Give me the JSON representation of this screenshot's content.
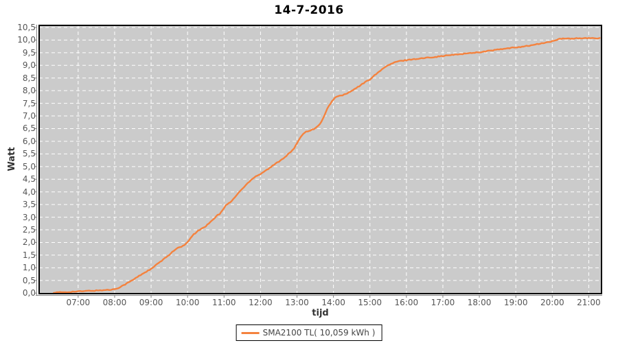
{
  "chart_data": {
    "type": "line",
    "title": "14-7-2016",
    "xlabel": "tijd",
    "ylabel": "Watt",
    "ylim": [
      0,
      10.5
    ],
    "y_tick_step": 0.5,
    "grid": {
      "visible": true,
      "color": "#FFFFFF",
      "style": "dashed"
    },
    "plot_background": "#CBCBCB",
    "plot_border_color": "#000000",
    "tick_text_color": "#555555",
    "x_ticks": [
      {
        "t": 7,
        "label": "07:00"
      },
      {
        "t": 8,
        "label": "08:00"
      },
      {
        "t": 9,
        "label": "09:00"
      },
      {
        "t": 10,
        "label": "10:00"
      },
      {
        "t": 11,
        "label": "11:00"
      },
      {
        "t": 12,
        "label": "12:00"
      },
      {
        "t": 13,
        "label": "13:00"
      },
      {
        "t": 14,
        "label": "14:00"
      },
      {
        "t": 15,
        "label": "15:00"
      },
      {
        "t": 16,
        "label": "16:00"
      },
      {
        "t": 17,
        "label": "17:00"
      },
      {
        "t": 18,
        "label": "18:00"
      },
      {
        "t": 19,
        "label": "19:00"
      },
      {
        "t": 20,
        "label": "20:00"
      },
      {
        "t": 21,
        "label": "21:00"
      }
    ],
    "y_ticks": [
      {
        "v": 0.0,
        "label": "0,0"
      },
      {
        "v": 0.5,
        "label": "0,5"
      },
      {
        "v": 1.0,
        "label": "1,0"
      },
      {
        "v": 1.5,
        "label": "1,5"
      },
      {
        "v": 2.0,
        "label": "2,0"
      },
      {
        "v": 2.5,
        "label": "2,5"
      },
      {
        "v": 3.0,
        "label": "3,0"
      },
      {
        "v": 3.5,
        "label": "3,5"
      },
      {
        "v": 4.0,
        "label": "4,0"
      },
      {
        "v": 4.5,
        "label": "4,5"
      },
      {
        "v": 5.0,
        "label": "5,0"
      },
      {
        "v": 5.5,
        "label": "5,5"
      },
      {
        "v": 6.0,
        "label": "6,0"
      },
      {
        "v": 6.5,
        "label": "6,5"
      },
      {
        "v": 7.0,
        "label": "7,0"
      },
      {
        "v": 7.5,
        "label": "7,5"
      },
      {
        "v": 8.0,
        "label": "8,0"
      },
      {
        "v": 8.5,
        "label": "8,5"
      },
      {
        "v": 9.0,
        "label": "9,0"
      },
      {
        "v": 9.5,
        "label": "9,5"
      },
      {
        "v": 10.0,
        "label": "10,0"
      },
      {
        "v": 10.5,
        "label": "10,5"
      }
    ],
    "legend": {
      "position": "bottom-center",
      "entries": [
        {
          "label": "SMA2100 TL( 10,059 kWh )",
          "color": "#F4823E"
        }
      ]
    },
    "series": [
      {
        "name": "SMA2100 TL",
        "color": "#F4823E",
        "points": [
          [
            6.33,
            0.02
          ],
          [
            6.5,
            0.03
          ],
          [
            6.7,
            0.04
          ],
          [
            6.9,
            0.06
          ],
          [
            7.1,
            0.07
          ],
          [
            7.3,
            0.09
          ],
          [
            7.5,
            0.1
          ],
          [
            7.7,
            0.12
          ],
          [
            7.9,
            0.13
          ],
          [
            8.0,
            0.16
          ],
          [
            8.1,
            0.21
          ],
          [
            8.2,
            0.28
          ],
          [
            8.33,
            0.38
          ],
          [
            8.5,
            0.52
          ],
          [
            8.67,
            0.68
          ],
          [
            8.83,
            0.82
          ],
          [
            9.0,
            0.95
          ],
          [
            9.17,
            1.15
          ],
          [
            9.33,
            1.32
          ],
          [
            9.5,
            1.52
          ],
          [
            9.62,
            1.68
          ],
          [
            9.73,
            1.78
          ],
          [
            9.83,
            1.83
          ],
          [
            9.92,
            1.9
          ],
          [
            10.0,
            2.0
          ],
          [
            10.08,
            2.18
          ],
          [
            10.17,
            2.32
          ],
          [
            10.25,
            2.42
          ],
          [
            10.33,
            2.5
          ],
          [
            10.42,
            2.58
          ],
          [
            10.5,
            2.64
          ],
          [
            10.58,
            2.76
          ],
          [
            10.67,
            2.88
          ],
          [
            10.75,
            2.98
          ],
          [
            10.82,
            3.08
          ],
          [
            10.88,
            3.13
          ],
          [
            11.0,
            3.35
          ],
          [
            11.05,
            3.48
          ],
          [
            11.13,
            3.55
          ],
          [
            11.2,
            3.62
          ],
          [
            11.3,
            3.8
          ],
          [
            11.4,
            3.97
          ],
          [
            11.5,
            4.12
          ],
          [
            11.6,
            4.27
          ],
          [
            11.7,
            4.42
          ],
          [
            11.78,
            4.53
          ],
          [
            11.87,
            4.62
          ],
          [
            11.95,
            4.67
          ],
          [
            12.0,
            4.71
          ],
          [
            12.08,
            4.79
          ],
          [
            12.17,
            4.87
          ],
          [
            12.25,
            4.94
          ],
          [
            12.33,
            5.03
          ],
          [
            12.42,
            5.12
          ],
          [
            12.5,
            5.2
          ],
          [
            12.58,
            5.28
          ],
          [
            12.67,
            5.38
          ],
          [
            12.75,
            5.48
          ],
          [
            12.83,
            5.58
          ],
          [
            12.92,
            5.72
          ],
          [
            13.0,
            5.9
          ],
          [
            13.05,
            6.05
          ],
          [
            13.1,
            6.18
          ],
          [
            13.17,
            6.3
          ],
          [
            13.25,
            6.38
          ],
          [
            13.33,
            6.42
          ],
          [
            13.42,
            6.46
          ],
          [
            13.5,
            6.52
          ],
          [
            13.58,
            6.6
          ],
          [
            13.67,
            6.78
          ],
          [
            13.75,
            7.0
          ],
          [
            13.83,
            7.28
          ],
          [
            13.92,
            7.5
          ],
          [
            14.0,
            7.66
          ],
          [
            14.05,
            7.73
          ],
          [
            14.13,
            7.78
          ],
          [
            14.25,
            7.82
          ],
          [
            14.33,
            7.87
          ],
          [
            14.42,
            7.92
          ],
          [
            14.5,
            7.99
          ],
          [
            14.58,
            8.06
          ],
          [
            14.67,
            8.14
          ],
          [
            14.75,
            8.22
          ],
          [
            14.83,
            8.3
          ],
          [
            14.92,
            8.38
          ],
          [
            15.0,
            8.45
          ],
          [
            15.08,
            8.55
          ],
          [
            15.17,
            8.65
          ],
          [
            15.25,
            8.75
          ],
          [
            15.33,
            8.85
          ],
          [
            15.42,
            8.93
          ],
          [
            15.5,
            9.0
          ],
          [
            15.58,
            9.06
          ],
          [
            15.67,
            9.11
          ],
          [
            15.75,
            9.15
          ],
          [
            15.83,
            9.17
          ],
          [
            15.92,
            9.19
          ],
          [
            16.0,
            9.21
          ],
          [
            16.17,
            9.24
          ],
          [
            16.33,
            9.26
          ],
          [
            16.5,
            9.29
          ],
          [
            16.67,
            9.32
          ],
          [
            16.83,
            9.34
          ],
          [
            17.0,
            9.37
          ],
          [
            17.17,
            9.4
          ],
          [
            17.33,
            9.42
          ],
          [
            17.5,
            9.45
          ],
          [
            17.67,
            9.47
          ],
          [
            17.83,
            9.5
          ],
          [
            18.0,
            9.52
          ],
          [
            18.17,
            9.55
          ],
          [
            18.33,
            9.59
          ],
          [
            18.5,
            9.62
          ],
          [
            18.67,
            9.65
          ],
          [
            18.83,
            9.68
          ],
          [
            19.0,
            9.71
          ],
          [
            19.17,
            9.74
          ],
          [
            19.33,
            9.77
          ],
          [
            19.5,
            9.81
          ],
          [
            19.67,
            9.86
          ],
          [
            19.83,
            9.9
          ],
          [
            20.0,
            9.95
          ],
          [
            20.08,
            9.99
          ],
          [
            20.17,
            10.03
          ],
          [
            20.25,
            10.05
          ],
          [
            20.42,
            10.06
          ],
          [
            20.58,
            10.06
          ],
          [
            20.75,
            10.07
          ],
          [
            21.0,
            10.07
          ],
          [
            21.15,
            10.07
          ],
          [
            21.3,
            10.08
          ]
        ]
      }
    ]
  }
}
